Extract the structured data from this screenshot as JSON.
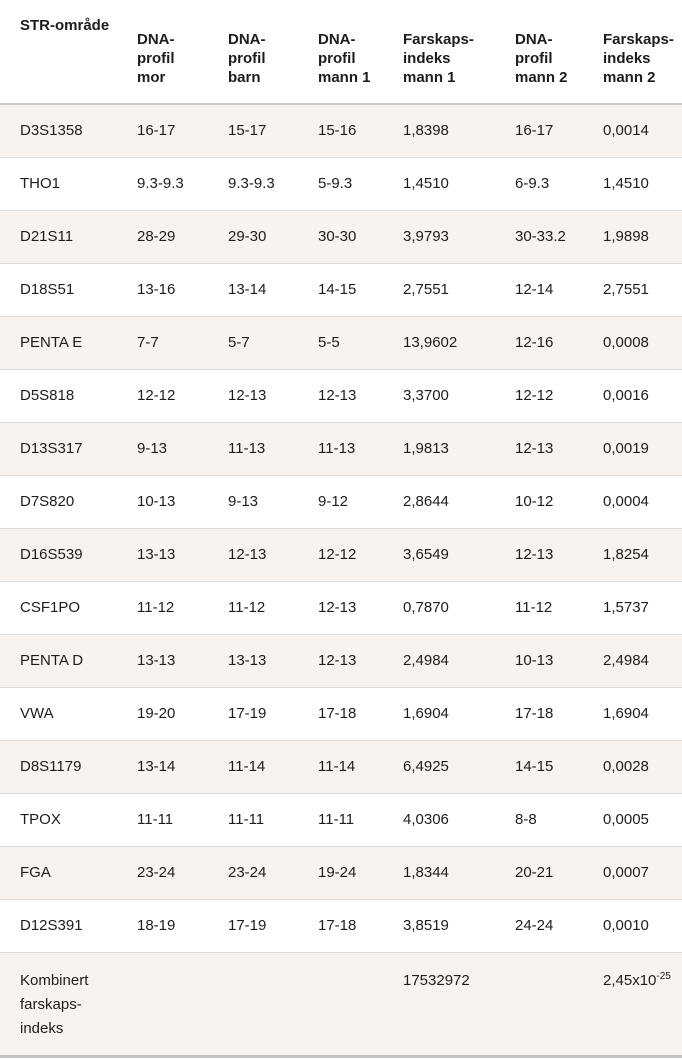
{
  "colors": {
    "row_stripe": "#f8f3ee",
    "row_border": "#dcdcdc",
    "header_border": "#c9c9c9",
    "bottom_bar": "#c5c5c5",
    "text": "#1d1d1b"
  },
  "table": {
    "columns": [
      {
        "label": "STR-område"
      },
      {
        "label": "DNA-\nprofil\nmor"
      },
      {
        "label": "DNA-\nprofil\nbarn"
      },
      {
        "label": "DNA-\nprofil\nmann 1"
      },
      {
        "label": "Farskaps-\nindeks\nmann 1"
      },
      {
        "label": "DNA-\nprofil\nmann 2"
      },
      {
        "label": "Farskaps-\nindeks\nmann 2"
      }
    ],
    "rows": [
      {
        "locus": "D3S1358",
        "mor": "16-17",
        "barn": "15-17",
        "mann1": "15-16",
        "fi_mann1": "1,8398",
        "mann2": "16-17",
        "fi_mann2": "0,0014"
      },
      {
        "locus": "THO1",
        "mor": "9.3-9.3",
        "barn": "9.3-9.3",
        "mann1": "5-9.3",
        "fi_mann1": "1,4510",
        "mann2": "6-9.3",
        "fi_mann2": "1,4510"
      },
      {
        "locus": "D21S11",
        "mor": "28-29",
        "barn": "29-30",
        "mann1": "30-30",
        "fi_mann1": "3,9793",
        "mann2": "30-33.2",
        "fi_mann2": "1,9898"
      },
      {
        "locus": "D18S51",
        "mor": "13-16",
        "barn": "13-14",
        "mann1": "14-15",
        "fi_mann1": "2,7551",
        "mann2": "12-14",
        "fi_mann2": "2,7551"
      },
      {
        "locus": "PENTA E",
        "mor": "7-7",
        "barn": "5-7",
        "mann1": "5-5",
        "fi_mann1": "13,9602",
        "mann2": "12-16",
        "fi_mann2": "0,0008"
      },
      {
        "locus": "D5S818",
        "mor": "12-12",
        "barn": "12-13",
        "mann1": "12-13",
        "fi_mann1": "3,3700",
        "mann2": "12-12",
        "fi_mann2": "0,0016"
      },
      {
        "locus": "D13S317",
        "mor": "9-13",
        "barn": "11-13",
        "mann1": "11-13",
        "fi_mann1": "1,9813",
        "mann2": "12-13",
        "fi_mann2": "0,0019"
      },
      {
        "locus": "D7S820",
        "mor": "10-13",
        "barn": "9-13",
        "mann1": "9-12",
        "fi_mann1": "2,8644",
        "mann2": "10-12",
        "fi_mann2": "0,0004"
      },
      {
        "locus": "D16S539",
        "mor": "13-13",
        "barn": "12-13",
        "mann1": "12-12",
        "fi_mann1": "3,6549",
        "mann2": "12-13",
        "fi_mann2": "1,8254"
      },
      {
        "locus": "CSF1PO",
        "mor": "11-12",
        "barn": "11-12",
        "mann1": "12-13",
        "fi_mann1": "0,7870",
        "mann2": "11-12",
        "fi_mann2": "1,5737"
      },
      {
        "locus": "PENTA D",
        "mor": "13-13",
        "barn": "13-13",
        "mann1": "12-13",
        "fi_mann1": "2,4984",
        "mann2": "10-13",
        "fi_mann2": "2,4984"
      },
      {
        "locus": "VWA",
        "mor": "19-20",
        "barn": "17-19",
        "mann1": "17-18",
        "fi_mann1": "1,6904",
        "mann2": "17-18",
        "fi_mann2": "1,6904"
      },
      {
        "locus": "D8S1179",
        "mor": "13-14",
        "barn": "11-14",
        "mann1": "11-14",
        "fi_mann1": "6,4925",
        "mann2": "14-15",
        "fi_mann2": "0,0028"
      },
      {
        "locus": "TPOX",
        "mor": "11-11",
        "barn": "11-11",
        "mann1": "11-11",
        "fi_mann1": "4,0306",
        "mann2": "8-8",
        "fi_mann2": "0,0005"
      },
      {
        "locus": "FGA",
        "mor": "23-24",
        "barn": "23-24",
        "mann1": "19-24",
        "fi_mann1": "1,8344",
        "mann2": "20-21",
        "fi_mann2": "0,0007"
      },
      {
        "locus": "D12S391",
        "mor": "18-19",
        "barn": "17-19",
        "mann1": "17-18",
        "fi_mann1": "3,8519",
        "mann2": "24-24",
        "fi_mann2": "0,0010"
      }
    ],
    "footer": {
      "label": "Kombinert\nfarskaps-\nindeks",
      "fi_mann1": "17532972",
      "fi_mann2_base": "2,45x10",
      "fi_mann2_exp": "-25"
    }
  }
}
